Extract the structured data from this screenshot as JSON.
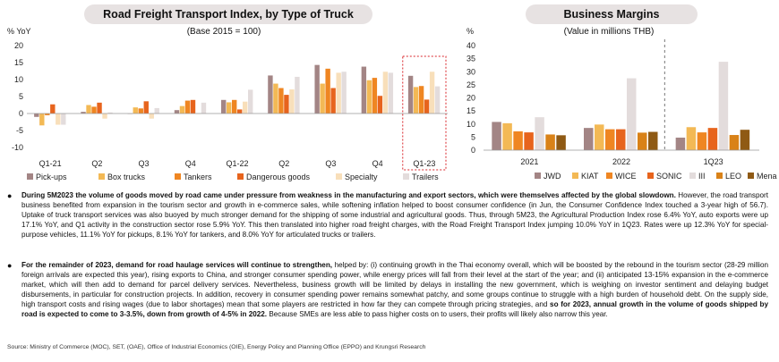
{
  "charts": {
    "left": {
      "title": "Road Freight Transport Index, by Type of Truck",
      "subtitle": "(Base 2015 = 100)",
      "unit": "% YoY"
    },
    "right": {
      "title": "Business Margins",
      "subtitle": "(Value in millions THB)",
      "unit": "%"
    }
  },
  "chart_data": [
    {
      "type": "bar",
      "title": "Road Freight Transport Index, by Type of Truck",
      "subtitle": "(Base 2015 = 100)",
      "ylabel": "% YoY",
      "ylim": [
        -10,
        20
      ],
      "yticks": [
        -10,
        -5,
        0,
        5,
        10,
        15,
        20
      ],
      "categories": [
        "Q1-21",
        "Q2",
        "Q3",
        "Q4",
        "Q1-22",
        "Q2",
        "Q3",
        "Q4",
        "Q1-23"
      ],
      "highlight": "Q1-23",
      "series": [
        {
          "name": "Pick-ups",
          "color": "#a38585",
          "values": [
            -1,
            0.5,
            0,
            1,
            4,
            11.2,
            14.3,
            13.8,
            11.1
          ]
        },
        {
          "name": "Box trucks",
          "color": "#f3b955",
          "values": [
            -3.5,
            2.5,
            1.8,
            2.2,
            3.3,
            8.8,
            8.8,
            9.8,
            7.8
          ]
        },
        {
          "name": "Tankers",
          "color": "#ef8622",
          "values": [
            -0.5,
            2,
            1.5,
            3.8,
            4,
            7.5,
            13.2,
            10.5,
            8.1
          ]
        },
        {
          "name": "Dangerous goods",
          "color": "#e7641d",
          "values": [
            2.7,
            3.2,
            3.6,
            4,
            1.2,
            5.5,
            7.5,
            5.2,
            4.1
          ]
        },
        {
          "name": "Specialty",
          "color": "#f8dfba",
          "values": [
            -3.3,
            -1.5,
            -1.5,
            0,
            3.5,
            7.1,
            12,
            12.3,
            12.3
          ]
        },
        {
          "name": "Trailers",
          "color": "#e3dcdc",
          "values": [
            -3.3,
            0.3,
            1.6,
            3.2,
            7,
            10.8,
            12.3,
            12,
            8
          ]
        }
      ]
    },
    {
      "type": "bar",
      "title": "Business Margins",
      "subtitle": "(Value in millions THB)",
      "ylabel": "%",
      "ylim": [
        0,
        40
      ],
      "yticks": [
        0,
        5,
        10,
        15,
        20,
        25,
        30,
        35,
        40
      ],
      "categories": [
        "2021",
        "2022",
        "1Q23"
      ],
      "series": [
        {
          "name": "JWD",
          "color": "#a38585",
          "values": [
            10.8,
            8.5,
            4.8
          ]
        },
        {
          "name": "KIAT",
          "color": "#f3b955",
          "values": [
            10.3,
            9.8,
            8.8
          ]
        },
        {
          "name": "WICE",
          "color": "#ef8622",
          "values": [
            7.2,
            8,
            6.8
          ]
        },
        {
          "name": "SONIC",
          "color": "#e7641d",
          "values": [
            6.8,
            8,
            8.5
          ]
        },
        {
          "name": "III",
          "color": "#e3dcdc",
          "values": [
            12.6,
            27.5,
            33.8
          ]
        },
        {
          "name": "LEO",
          "color": "#d98218",
          "values": [
            6,
            6.7,
            5.8
          ]
        },
        {
          "name": "Mena",
          "color": "#8f5a14",
          "values": [
            5.7,
            7,
            7.8
          ]
        }
      ]
    }
  ],
  "bullets": [
    {
      "bold": "During 5M2023 the volume of goods moved by road came under pressure from weakness in the manufacturing and export sectors, which were themselves affected by the global slowdown.",
      "text": " However, the road transport business benefited from expansion in the tourism sector and growth in e-commerce sales, while softening inflation helped to boost consumer confidence (in Jun, the Consumer Confidence Index touched a 3-year high of 56.7). Uptake of truck transport services was also buoyed by much stronger demand for the shipping of some industrial and agricultural goods. Thus, through 5M23, the Agricultural Production Index rose 6.4% YoY, auto exports were up 17.1% YoY, and Q1 activity in the construction sector rose 5.9% YoY.  This then translated into higher road freight charges, with the Road Freight Transport Index jumping 10.0% YoY in 1Q23. Rates were up 12.3% YoY for special-purpose vehicles, 11.1% YoY for pickups, 8.1% YoY for tankers, and 8.0% YoY for articulated trucks or trailers."
    },
    {
      "bold": "For the remainder of 2023, demand for road haulage services will continue to strengthen,",
      "text": " helped by: (i) continuing growth in the Thai economy overall, which will be boosted by the rebound in the tourism sector (28-29 million foreign arrivals are expected this year), rising exports to China, and stronger consumer spending power, while energy prices will fall from their level at the start of the year; and (ii) anticipated 13-15% expansion in the e-commerce market, which will then add to demand for parcel delivery services. Nevertheless, business growth will be limited by delays in installing the new government, which is weighing on investor sentiment and delaying budget disbursements, in particular for construction projects. In addition, recovery in consumer spending power remains somewhat patchy, and some groups continue to struggle with a high burden of household debt. On the supply side, high transport costs and rising wages (due to labor shortages) mean that some players are restricted in how far they can compete through pricing strategies, and ",
      "bold2": "so for 2023, annual growth in the volume of goods shipped by road is expected to come to 3-3.5%, down from growth of 4-5% in 2022.",
      "text2": " Because SMEs are less able to pass higher costs on to users, their profits will likely also narrow this year."
    }
  ],
  "source": "Source: Ministry of Commerce (MOC), SET,  (OAE), Office of Industrial Economics (OIE), Energy Policy and Planning Office (EPPO) and Krungsri Research"
}
